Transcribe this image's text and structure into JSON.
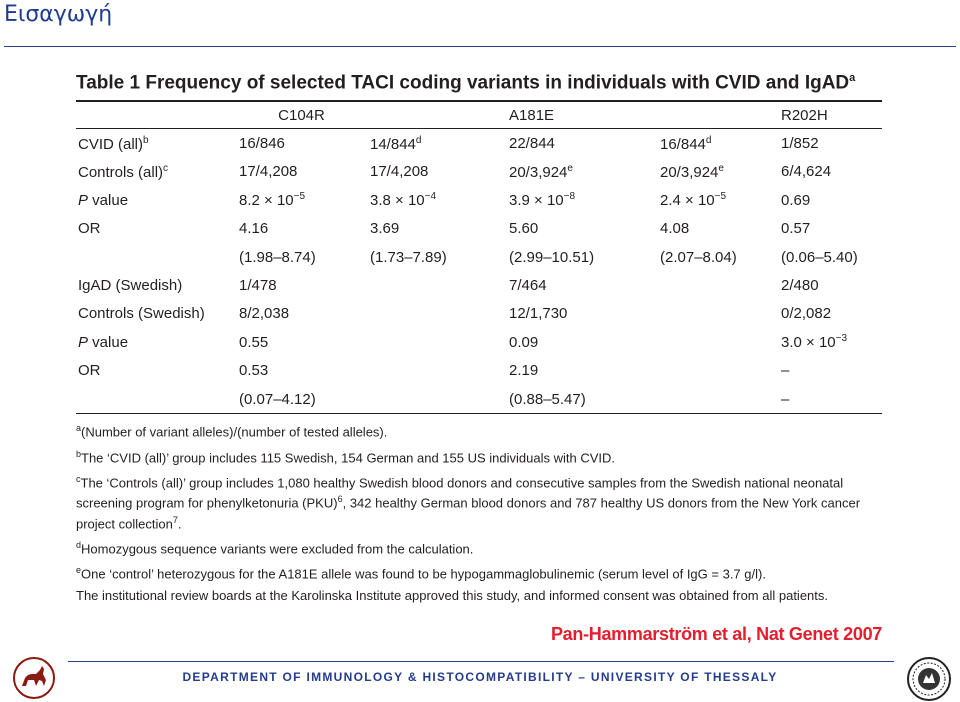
{
  "slide": {
    "title": "Εισαγωγή"
  },
  "table": {
    "caption": "Table 1 Frequency of selected TACI coding variants in individuals with CVID and IgAD",
    "caption_sup": "a",
    "columns": [
      "",
      "C104R",
      "",
      "A181E",
      "",
      "R202H"
    ],
    "rows": [
      [
        {
          "t": "CVID (all)",
          "s": "b"
        },
        {
          "t": "16/846"
        },
        {
          "t": "14/844",
          "s": "d"
        },
        {
          "t": "22/844"
        },
        {
          "t": "16/844",
          "s": "d"
        },
        {
          "t": "1/852"
        }
      ],
      [
        {
          "t": "Controls (all)",
          "s": "c"
        },
        {
          "t": "17/4,208"
        },
        {
          "t": "17/4,208"
        },
        {
          "t": "20/3,924",
          "s": "e"
        },
        {
          "t": "20/3,924",
          "s": "e"
        },
        {
          "t": "6/4,624"
        }
      ],
      [
        {
          "t": "P",
          "i": true,
          "r": " value"
        },
        {
          "t": "8.2 × 10",
          "s": "−5"
        },
        {
          "t": "3.8 × 10",
          "s": "−4"
        },
        {
          "t": "3.9 × 10",
          "s": "−8"
        },
        {
          "t": "2.4 × 10",
          "s": "−5"
        },
        {
          "t": "0.69"
        }
      ],
      [
        {
          "t": "OR"
        },
        {
          "t": "4.16"
        },
        {
          "t": "3.69"
        },
        {
          "t": "5.60"
        },
        {
          "t": "4.08"
        },
        {
          "t": "0.57"
        }
      ],
      [
        {
          "t": ""
        },
        {
          "t": "(1.98–8.74)"
        },
        {
          "t": "(1.73–7.89)"
        },
        {
          "t": "(2.99–10.51)"
        },
        {
          "t": "(2.07–8.04)"
        },
        {
          "t": "(0.06–5.40)"
        }
      ],
      [
        {
          "t": "IgAD (Swedish)"
        },
        {
          "t": "1/478"
        },
        {
          "t": ""
        },
        {
          "t": "7/464"
        },
        {
          "t": ""
        },
        {
          "t": "2/480"
        }
      ],
      [
        {
          "t": "Controls (Swedish)"
        },
        {
          "t": "8/2,038"
        },
        {
          "t": ""
        },
        {
          "t": "12/1,730"
        },
        {
          "t": ""
        },
        {
          "t": "0/2,082"
        }
      ],
      [
        {
          "t": "P",
          "i": true,
          "r": " value"
        },
        {
          "t": "0.55"
        },
        {
          "t": ""
        },
        {
          "t": "0.09"
        },
        {
          "t": ""
        },
        {
          "t": "3.0 × 10",
          "s": "−3"
        }
      ],
      [
        {
          "t": "OR"
        },
        {
          "t": "0.53"
        },
        {
          "t": ""
        },
        {
          "t": "2.19"
        },
        {
          "t": ""
        },
        {
          "t": "–"
        }
      ],
      [
        {
          "t": ""
        },
        {
          "t": "(0.07–4.12)"
        },
        {
          "t": ""
        },
        {
          "t": "(0.88–5.47)"
        },
        {
          "t": ""
        },
        {
          "t": "–"
        }
      ]
    ]
  },
  "notes": [
    {
      "sup": "a",
      "text": "(Number of variant alleles)/(number of tested alleles)."
    },
    {
      "sup": "b",
      "text": "The ‘CVID (all)’ group includes 115 Swedish, 154 German and 155 US individuals with CVID."
    },
    {
      "sup": "c",
      "text": "The ‘Controls (all)’ group includes 1,080 healthy Swedish blood donors and consecutive samples from the Swedish national neonatal screening program for phenylketonuria (PKU)",
      "sup2": "6",
      "text2": ", 342 healthy German blood donors and 787 healthy US donors from the New York cancer project collection",
      "sup3": "7",
      "text3": "."
    },
    {
      "sup": "d",
      "text": "Homozygous sequence variants were excluded from the calculation."
    },
    {
      "sup": "e",
      "text": "One ‘control’ heterozygous for the A181E allele was found to be hypogammaglobulinemic (serum level of IgG = 3.7 g/l)."
    },
    {
      "sup": "",
      "text": "The institutional review boards at the Karolinska Institute approved this study, and informed consent was obtained from all patients."
    }
  ],
  "citation": "Pan-Hammarström et al, Nat Genet 2007",
  "footer": {
    "text": "DEPARTMENT OF IMMUNOLOGY & HISTOCOMPATIBILITY – UNIVERSITY OF THESSALY"
  },
  "logos": {
    "left": "centaur-logo",
    "right": "university-seal-logo"
  },
  "colors": {
    "title": "#1f3c8f",
    "rule": "#2b3f8f",
    "citation": "#e31e2d",
    "footer": "#243c8c"
  }
}
